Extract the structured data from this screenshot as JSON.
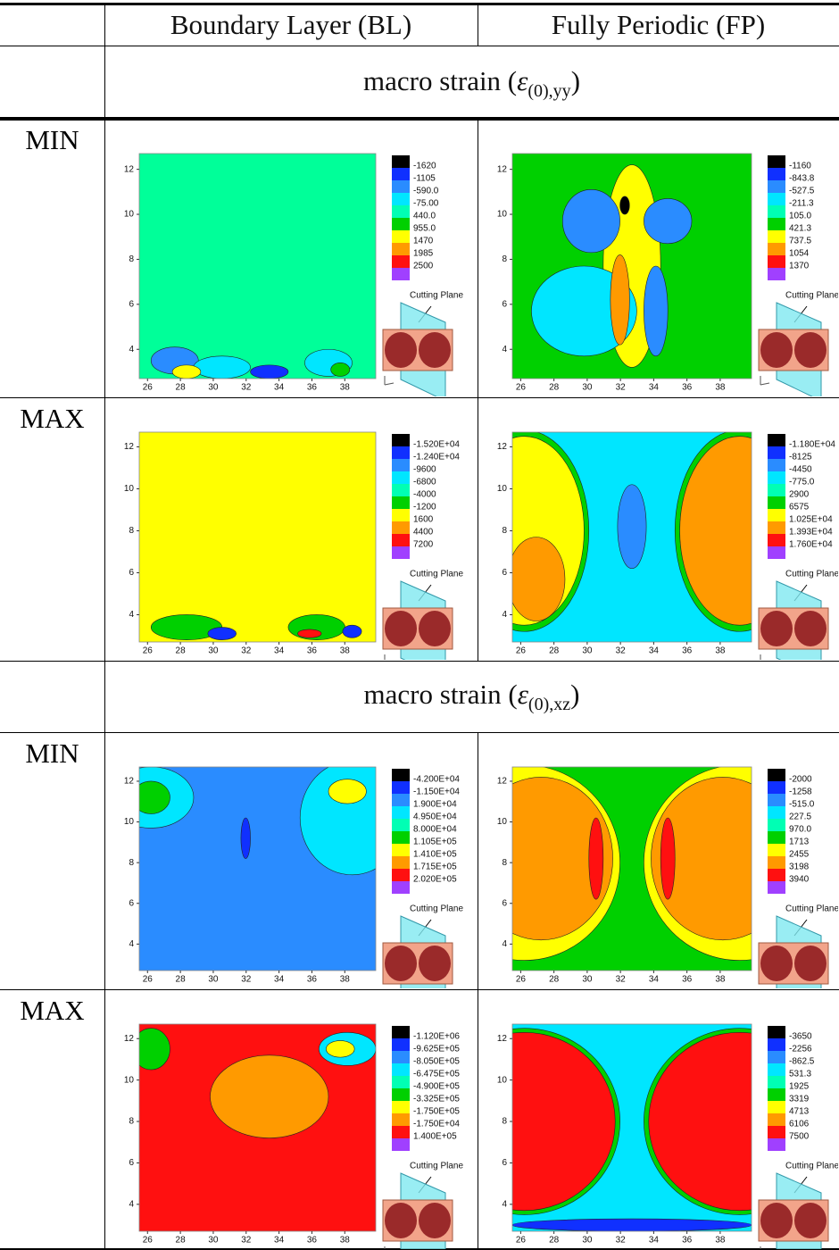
{
  "header": {
    "columns": [
      "Boundary Layer (BL)",
      "Fully Periodic (FP)"
    ]
  },
  "axes": {
    "x_ticks": [
      "26",
      "28",
      "30",
      "32",
      "34",
      "36",
      "38"
    ],
    "y_ticks": [
      "4",
      "6",
      "8",
      "10",
      "12"
    ]
  },
  "cutting_plane": "Cutting Plane",
  "sections": [
    {
      "heading": {
        "prefix": "macro strain (",
        "symbol": "ε",
        "subscript": "(0),yy",
        "suffix": ")"
      },
      "rows": [
        {
          "label": "MIN",
          "legends": [
            [
              "-1620",
              "-1105",
              "-590.0",
              "-75.00",
              "440.0",
              "955.0",
              "1470",
              "1985",
              "2500"
            ],
            [
              "-1160",
              "-843.8",
              "-527.5",
              "-211.3",
              "105.0",
              "421.3",
              "737.5",
              "1054",
              "1370"
            ]
          ]
        },
        {
          "label": "MAX",
          "legends": [
            [
              "-1.520E+04",
              "-1.240E+04",
              "-9600",
              "-6800",
              "-4000",
              "-1200",
              "1600",
              "4400",
              "7200"
            ],
            [
              "-1.180E+04",
              "-8125",
              "-4450",
              "-775.0",
              "2900",
              "6575",
              "1.025E+04",
              "1.393E+04",
              "1.760E+04"
            ]
          ]
        }
      ]
    },
    {
      "heading": {
        "prefix": "macro strain (",
        "symbol": "ε",
        "subscript": "(0),xz",
        "suffix": ")"
      },
      "rows": [
        {
          "label": "MIN",
          "legends": [
            [
              "-4.200E+04",
              "-1.150E+04",
              "1.900E+04",
              "4.950E+04",
              "8.000E+04",
              "1.105E+05",
              "1.410E+05",
              "1.715E+05",
              "2.020E+05"
            ],
            [
              "-2000",
              "-1258",
              "-515.0",
              "227.5",
              "970.0",
              "1713",
              "2455",
              "3198",
              "3940"
            ]
          ]
        },
        {
          "label": "MAX",
          "legends": [
            [
              "-1.120E+06",
              "-9.625E+05",
              "-8.050E+05",
              "-6.475E+05",
              "-4.900E+05",
              "-3.325E+05",
              "-1.750E+05",
              "-1.750E+04",
              "1.400E+05"
            ],
            [
              "-3650",
              "-2256",
              "-862.5",
              "531.3",
              "1925",
              "3319",
              "4713",
              "6106",
              "7500"
            ]
          ]
        }
      ]
    }
  ]
}
